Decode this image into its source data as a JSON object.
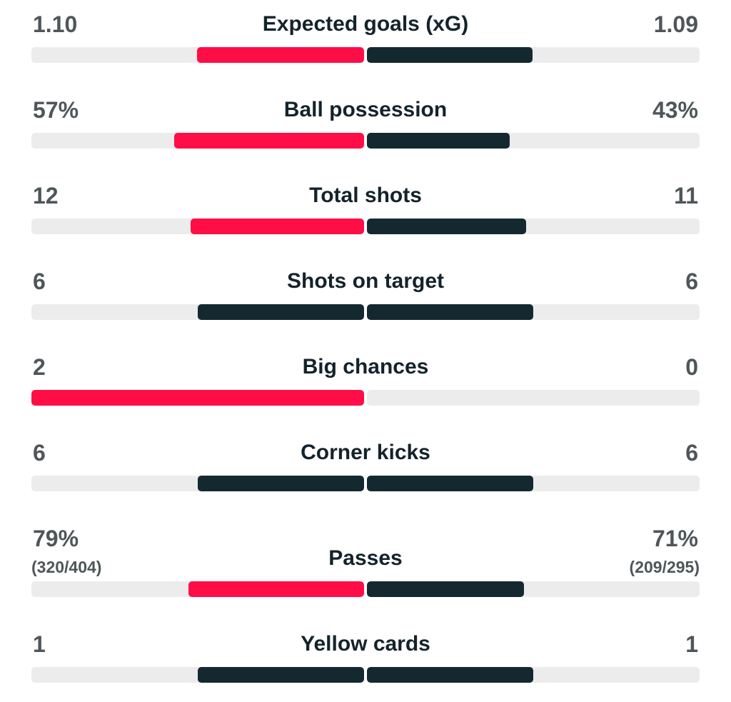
{
  "colors": {
    "leader": "#ff0d47",
    "other": "#14292f",
    "track": "#ececec"
  },
  "stats": [
    {
      "label": "Expected goals (xG)",
      "home": "1.10",
      "away": "1.09",
      "home_share": 0.502,
      "away_share": 0.498,
      "home_color": "leader",
      "away_color": "other"
    },
    {
      "label": "Ball possession",
      "home": "57%",
      "away": "43%",
      "home_share": 0.57,
      "away_share": 0.43,
      "home_color": "leader",
      "away_color": "other"
    },
    {
      "label": "Total shots",
      "home": "12",
      "away": "11",
      "home_share": 0.522,
      "away_share": 0.478,
      "home_color": "leader",
      "away_color": "other"
    },
    {
      "label": "Shots on target",
      "home": "6",
      "away": "6",
      "home_share": 0.5,
      "away_share": 0.5,
      "home_color": "other",
      "away_color": "other"
    },
    {
      "label": "Big chances",
      "home": "2",
      "away": "0",
      "home_share": 1.0,
      "away_share": 0.0,
      "home_color": "leader",
      "away_color": "other"
    },
    {
      "label": "Corner kicks",
      "home": "6",
      "away": "6",
      "home_share": 0.5,
      "away_share": 0.5,
      "home_color": "other",
      "away_color": "other"
    },
    {
      "label": "Passes",
      "home": "79%",
      "away": "71%",
      "home_sub": "(320/404)",
      "away_sub": "(209/295)",
      "home_share": 0.527,
      "away_share": 0.473,
      "home_color": "leader",
      "away_color": "other"
    },
    {
      "label": "Yellow cards",
      "home": "1",
      "away": "1",
      "home_share": 0.5,
      "away_share": 0.5,
      "home_color": "other",
      "away_color": "other"
    }
  ]
}
